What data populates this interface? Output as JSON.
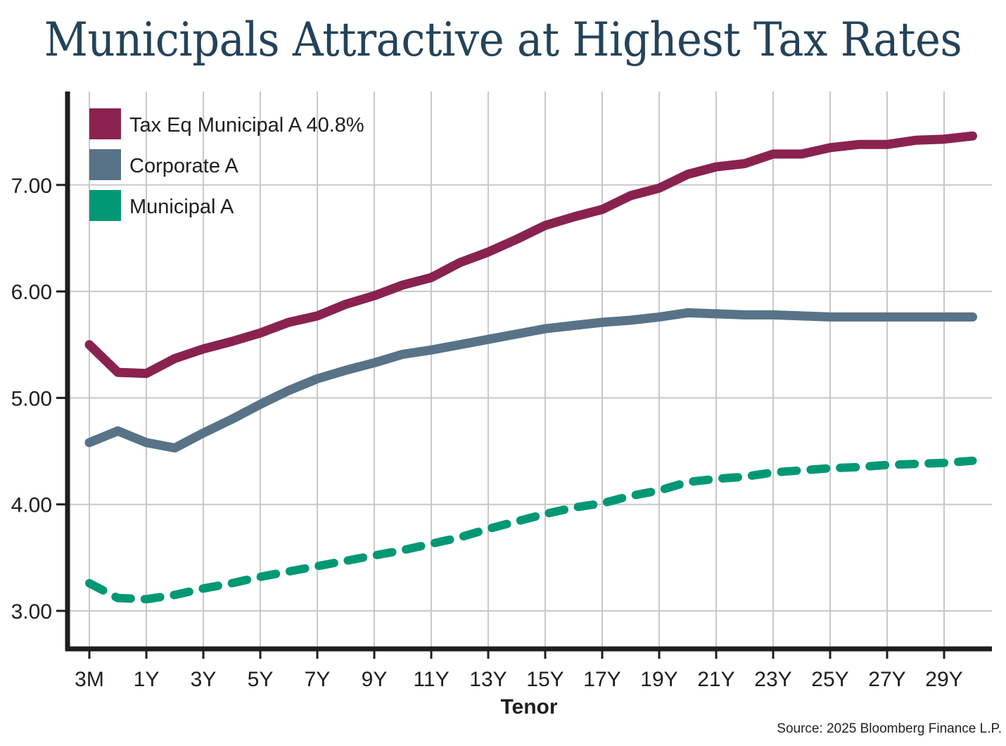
{
  "chart_data": {
    "type": "line",
    "title": "Municipals Attractive at Highest Tax Rates",
    "xlabel": "Tenor",
    "ylabel": "",
    "source": "Source: 2025 Bloomberg Finance L.P.",
    "ylim": [
      3.0,
      7.5
    ],
    "yticks": [
      3.0,
      4.0,
      5.0,
      6.0,
      7.0
    ],
    "ytick_labels": [
      "3.00",
      "4.00",
      "5.00",
      "6.00",
      "7.00"
    ],
    "grid": true,
    "legend_position": "top-left",
    "x": [
      "3M",
      "6M",
      "1Y",
      "2Y",
      "3Y",
      "4Y",
      "5Y",
      "6Y",
      "7Y",
      "8Y",
      "9Y",
      "10Y",
      "11Y",
      "12Y",
      "13Y",
      "14Y",
      "15Y",
      "16Y",
      "17Y",
      "18Y",
      "19Y",
      "20Y",
      "21Y",
      "22Y",
      "23Y",
      "24Y",
      "25Y",
      "26Y",
      "27Y",
      "28Y",
      "29Y",
      "30Y"
    ],
    "xtick_labels": [
      "3M",
      "1Y",
      "3Y",
      "5Y",
      "7Y",
      "9Y",
      "11Y",
      "13Y",
      "15Y",
      "17Y",
      "19Y",
      "21Y",
      "23Y",
      "25Y",
      "27Y",
      "29Y"
    ],
    "series": [
      {
        "name": "Tax Eq Municipal A 40.8%",
        "color": "#8a2250",
        "style": "solid",
        "values": [
          5.5,
          5.24,
          5.23,
          5.37,
          5.46,
          5.53,
          5.61,
          5.71,
          5.77,
          5.88,
          5.96,
          6.06,
          6.13,
          6.27,
          6.37,
          6.49,
          6.62,
          6.7,
          6.77,
          6.9,
          6.97,
          7.1,
          7.17,
          7.2,
          7.29,
          7.29,
          7.35,
          7.38,
          7.38,
          7.42,
          7.43,
          7.46
        ]
      },
      {
        "name": "Corporate A",
        "color": "#587387",
        "style": "solid",
        "values": [
          4.58,
          4.69,
          4.58,
          4.53,
          4.67,
          4.8,
          4.94,
          5.07,
          5.18,
          5.26,
          5.33,
          5.41,
          5.45,
          5.5,
          5.55,
          5.6,
          5.65,
          5.68,
          5.71,
          5.73,
          5.76,
          5.8,
          5.79,
          5.78,
          5.78,
          5.77,
          5.76,
          5.76,
          5.76,
          5.76,
          5.76,
          5.76
        ]
      },
      {
        "name": "Municipal A",
        "color": "#009874",
        "style": "dashed",
        "values": [
          3.26,
          3.12,
          3.11,
          3.15,
          3.21,
          3.26,
          3.32,
          3.37,
          3.42,
          3.47,
          3.52,
          3.57,
          3.63,
          3.69,
          3.77,
          3.84,
          3.91,
          3.97,
          4.01,
          4.08,
          4.13,
          4.21,
          4.24,
          4.26,
          4.3,
          4.32,
          4.34,
          4.35,
          4.37,
          4.38,
          4.39,
          4.41
        ]
      }
    ]
  }
}
